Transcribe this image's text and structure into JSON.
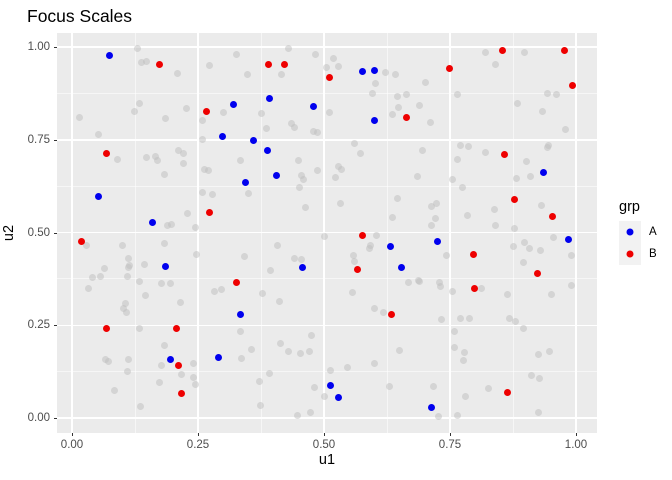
{
  "title": "Focus Scales",
  "chart_data": {
    "type": "scatter",
    "title": "Focus Scales",
    "xlabel": "u1",
    "ylabel": "u2",
    "xlim": [
      -0.05,
      1.05
    ],
    "ylim": [
      -0.05,
      1.05
    ],
    "grid": "white major and minor gridlines on grey panel",
    "panel_color": "#EBEBEB",
    "x_ticks": {
      "values": [
        0,
        0.25,
        0.5,
        0.75,
        1
      ],
      "labels": [
        "0.00",
        "0.25",
        "0.50",
        "0.75",
        "1.00"
      ]
    },
    "y_ticks": {
      "values": [
        0,
        0.25,
        0.5,
        0.75,
        1
      ],
      "labels": [
        "0.00",
        "0.25",
        "0.50",
        "0.75",
        "1.00"
      ]
    },
    "minor_ticks": [
      0.125,
      0.375,
      0.625,
      0.875
    ],
    "legend": {
      "title": "grp",
      "position": "right",
      "items": [
        {
          "label": "A",
          "color": "#0000EE"
        },
        {
          "label": "B",
          "color": "#EE0000"
        }
      ]
    },
    "series": [
      {
        "name": "background",
        "in_legend": false,
        "color": "#BEBEBE",
        "opacity": 0.5,
        "points": [
          [
            0.129,
            0.995
          ],
          [
            0.137,
            0.959
          ],
          [
            0.147,
            0.962
          ],
          [
            0.21,
            0.928
          ],
          [
            0.273,
            0.951
          ],
          [
            0.133,
            0.847
          ],
          [
            0.124,
            0.827
          ],
          [
            0.228,
            0.833
          ],
          [
            0.3,
            0.824
          ],
          [
            0.015,
            0.81
          ],
          [
            0.186,
            0.807
          ],
          [
            0.259,
            0.801
          ],
          [
            0.052,
            0.763
          ],
          [
            0.258,
            0.752
          ],
          [
            0.09,
            0.696
          ],
          [
            0.147,
            0.703
          ],
          [
            0.165,
            0.706
          ],
          [
            0.169,
            0.693
          ],
          [
            0.212,
            0.721
          ],
          [
            0.222,
            0.714
          ],
          [
            0.222,
            0.685
          ],
          [
            0.184,
            0.655
          ],
          [
            0.263,
            0.671
          ],
          [
            0.27,
            0.667
          ],
          [
            0.259,
            0.608
          ],
          [
            0.278,
            0.602
          ],
          [
            0.23,
            0.552
          ],
          [
            0.19,
            0.518
          ],
          [
            0.198,
            0.521
          ],
          [
            0.245,
            0.514
          ],
          [
            0.43,
            0.996
          ],
          [
            0.484,
            0.98
          ],
          [
            0.519,
            0.97
          ],
          [
            0.529,
            0.948
          ],
          [
            0.327,
            0.979
          ],
          [
            0.349,
            0.926
          ],
          [
            0.415,
            0.925
          ],
          [
            0.505,
            0.944
          ],
          [
            0.623,
            0.932
          ],
          [
            0.641,
            0.925
          ],
          [
            0.602,
            0.902
          ],
          [
            0.597,
            0.875
          ],
          [
            0.645,
            0.867
          ],
          [
            0.663,
            0.871
          ],
          [
            0.647,
            0.838
          ],
          [
            0.375,
            0.82
          ],
          [
            0.511,
            0.824
          ],
          [
            0.635,
            0.818
          ],
          [
            0.435,
            0.795
          ],
          [
            0.441,
            0.783
          ],
          [
            0.385,
            0.779
          ],
          [
            0.48,
            0.773
          ],
          [
            0.488,
            0.77
          ],
          [
            0.56,
            0.739
          ],
          [
            0.573,
            0.714
          ],
          [
            0.335,
            0.694
          ],
          [
            0.45,
            0.694
          ],
          [
            0.529,
            0.679
          ],
          [
            0.534,
            0.671
          ],
          [
            0.522,
            0.648
          ],
          [
            0.455,
            0.653
          ],
          [
            0.46,
            0.642
          ],
          [
            0.488,
            0.666
          ],
          [
            0.35,
            0.605
          ],
          [
            0.452,
            0.622
          ],
          [
            0.464,
            0.567
          ],
          [
            0.532,
            0.577
          ],
          [
            0.645,
            0.591
          ],
          [
            0.636,
            0.541
          ],
          [
            0.82,
            0.984
          ],
          [
            0.897,
            0.986
          ],
          [
            0.841,
            0.952
          ],
          [
            0.702,
            0.903
          ],
          [
            0.764,
            0.871
          ],
          [
            0.943,
            0.876
          ],
          [
            0.962,
            0.871
          ],
          [
            0.69,
            0.842
          ],
          [
            0.884,
            0.848
          ],
          [
            0.934,
            0.825
          ],
          [
            0.712,
            0.796
          ],
          [
            0.98,
            0.777
          ],
          [
            0.696,
            0.722
          ],
          [
            0.77,
            0.734
          ],
          [
            0.787,
            0.731
          ],
          [
            0.765,
            0.698
          ],
          [
            0.82,
            0.716
          ],
          [
            0.943,
            0.728
          ],
          [
            0.946,
            0.734
          ],
          [
            0.902,
            0.692
          ],
          [
            0.91,
            0.651
          ],
          [
            0.881,
            0.645
          ],
          [
            0.685,
            0.65
          ],
          [
            0.754,
            0.642
          ],
          [
            0.774,
            0.622
          ],
          [
            0.713,
            0.571
          ],
          [
            0.724,
            0.579
          ],
          [
            0.721,
            0.538
          ],
          [
            0.784,
            0.545
          ],
          [
            0.838,
            0.562
          ],
          [
            0.932,
            0.572
          ],
          [
            0.841,
            0.518
          ],
          [
            0.878,
            0.512
          ],
          [
            0.714,
            0.518
          ],
          [
            0.028,
            0.464
          ],
          [
            0.1,
            0.466
          ],
          [
            0.184,
            0.47
          ],
          [
            0.247,
            0.44
          ],
          [
            0.112,
            0.431
          ],
          [
            0.114,
            0.412
          ],
          [
            0.112,
            0.405
          ],
          [
            0.143,
            0.413
          ],
          [
            0.065,
            0.402
          ],
          [
            0.04,
            0.379
          ],
          [
            0.056,
            0.381
          ],
          [
            0.11,
            0.381
          ],
          [
            0.134,
            0.367
          ],
          [
            0.177,
            0.362
          ],
          [
            0.196,
            0.362
          ],
          [
            0.033,
            0.349
          ],
          [
            0.146,
            0.33
          ],
          [
            0.283,
            0.342
          ],
          [
            0.296,
            0.347
          ],
          [
            0.107,
            0.308
          ],
          [
            0.103,
            0.294
          ],
          [
            0.109,
            0.285
          ],
          [
            0.216,
            0.311
          ],
          [
            0.134,
            0.24
          ],
          [
            0.183,
            0.195
          ],
          [
            0.066,
            0.159
          ],
          [
            0.073,
            0.153
          ],
          [
            0.113,
            0.158
          ],
          [
            0.177,
            0.142
          ],
          [
            0.11,
            0.126
          ],
          [
            0.173,
            0.096
          ],
          [
            0.218,
            0.118
          ],
          [
            0.242,
            0.108
          ],
          [
            0.246,
            0.089
          ],
          [
            0.084,
            0.075
          ],
          [
            0.136,
            0.031
          ],
          [
            0.241,
            0.147
          ],
          [
            0.342,
            0.436
          ],
          [
            0.408,
            0.466
          ],
          [
            0.441,
            0.43
          ],
          [
            0.456,
            0.427
          ],
          [
            0.501,
            0.488
          ],
          [
            0.558,
            0.439
          ],
          [
            0.56,
            0.421
          ],
          [
            0.591,
            0.457
          ],
          [
            0.593,
            0.464
          ],
          [
            0.394,
            0.398
          ],
          [
            0.377,
            0.335
          ],
          [
            0.412,
            0.313
          ],
          [
            0.556,
            0.338
          ],
          [
            0.601,
            0.294
          ],
          [
            0.618,
            0.285
          ],
          [
            0.334,
            0.232
          ],
          [
            0.356,
            0.185
          ],
          [
            0.336,
            0.16
          ],
          [
            0.413,
            0.2
          ],
          [
            0.43,
            0.178
          ],
          [
            0.453,
            0.175
          ],
          [
            0.472,
            0.178
          ],
          [
            0.476,
            0.222
          ],
          [
            0.649,
            0.182
          ],
          [
            0.6,
            0.148
          ],
          [
            0.513,
            0.129
          ],
          [
            0.546,
            0.135
          ],
          [
            0.391,
            0.119
          ],
          [
            0.372,
            0.098
          ],
          [
            0.374,
            0.033
          ],
          [
            0.482,
            0.082
          ],
          [
            0.501,
            0.057
          ],
          [
            0.474,
            0.016
          ],
          [
            0.448,
            0.007
          ],
          [
            0.63,
            0.086
          ],
          [
            0.605,
            0.493
          ],
          [
            0.667,
            0.366
          ],
          [
            0.688,
            0.37
          ],
          [
            0.743,
            0.437
          ],
          [
            0.69,
            0.367
          ],
          [
            0.73,
            0.364
          ],
          [
            0.732,
            0.355
          ],
          [
            0.755,
            0.34
          ],
          [
            0.812,
            0.349
          ],
          [
            0.865,
            0.334
          ],
          [
            0.897,
            0.474
          ],
          [
            0.907,
            0.456
          ],
          [
            0.895,
            0.42
          ],
          [
            0.876,
            0.461
          ],
          [
            0.93,
            0.452
          ],
          [
            0.956,
            0.487
          ],
          [
            0.991,
            0.438
          ],
          [
            0.991,
            0.357
          ],
          [
            0.952,
            0.332
          ],
          [
            0.733,
            0.265
          ],
          [
            0.77,
            0.268
          ],
          [
            0.789,
            0.268
          ],
          [
            0.868,
            0.269
          ],
          [
            0.88,
            0.259
          ],
          [
            0.895,
            0.24
          ],
          [
            0.758,
            0.233
          ],
          [
            0.759,
            0.19
          ],
          [
            0.779,
            0.177
          ],
          [
            0.777,
            0.155
          ],
          [
            0.926,
            0.172
          ],
          [
            0.947,
            0.18
          ],
          [
            0.911,
            0.114
          ],
          [
            0.927,
            0.107
          ],
          [
            0.717,
            0.084
          ],
          [
            0.78,
            0.057
          ],
          [
            0.827,
            0.08
          ],
          [
            0.925,
            0.014
          ],
          [
            0.727,
            0.005
          ],
          [
            0.764,
            0.008
          ]
        ]
      },
      {
        "name": "A",
        "in_legend": true,
        "color": "#0000EE",
        "opacity": 1,
        "points": [
          [
            0.075,
            0.977
          ],
          [
            0.321,
            0.845
          ],
          [
            0.298,
            0.758
          ],
          [
            0.052,
            0.596
          ],
          [
            0.16,
            0.526
          ],
          [
            0.577,
            0.934
          ],
          [
            0.601,
            0.936
          ],
          [
            0.392,
            0.862
          ],
          [
            0.48,
            0.84
          ],
          [
            0.6,
            0.801
          ],
          [
            0.36,
            0.747
          ],
          [
            0.387,
            0.72
          ],
          [
            0.405,
            0.654
          ],
          [
            0.344,
            0.636
          ],
          [
            0.936,
            0.663
          ],
          [
            0.185,
            0.408
          ],
          [
            0.196,
            0.157
          ],
          [
            0.29,
            0.162
          ],
          [
            0.632,
            0.462
          ],
          [
            0.654,
            0.406
          ],
          [
            0.457,
            0.405
          ],
          [
            0.335,
            0.278
          ],
          [
            0.513,
            0.087
          ],
          [
            0.529,
            0.055
          ],
          [
            0.726,
            0.476
          ],
          [
            0.986,
            0.482
          ],
          [
            0.714,
            0.027
          ]
        ]
      },
      {
        "name": "B",
        "in_legend": true,
        "color": "#EE0000",
        "opacity": 1,
        "points": [
          [
            0.174,
            0.953
          ],
          [
            0.266,
            0.826
          ],
          [
            0.068,
            0.713
          ],
          [
            0.272,
            0.553
          ],
          [
            0.39,
            0.952
          ],
          [
            0.421,
            0.954
          ],
          [
            0.511,
            0.918
          ],
          [
            0.663,
            0.81
          ],
          [
            0.855,
            0.99
          ],
          [
            0.978,
            0.99
          ],
          [
            0.749,
            0.941
          ],
          [
            0.993,
            0.897
          ],
          [
            0.858,
            0.71
          ],
          [
            0.878,
            0.588
          ],
          [
            0.954,
            0.543
          ],
          [
            0.018,
            0.476
          ],
          [
            0.069,
            0.242
          ],
          [
            0.207,
            0.241
          ],
          [
            0.211,
            0.141
          ],
          [
            0.218,
            0.065
          ],
          [
            0.327,
            0.366
          ],
          [
            0.576,
            0.491
          ],
          [
            0.566,
            0.401
          ],
          [
            0.633,
            0.28
          ],
          [
            0.796,
            0.441
          ],
          [
            0.798,
            0.348
          ],
          [
            0.923,
            0.389
          ],
          [
            0.864,
            0.07
          ]
        ]
      }
    ]
  }
}
